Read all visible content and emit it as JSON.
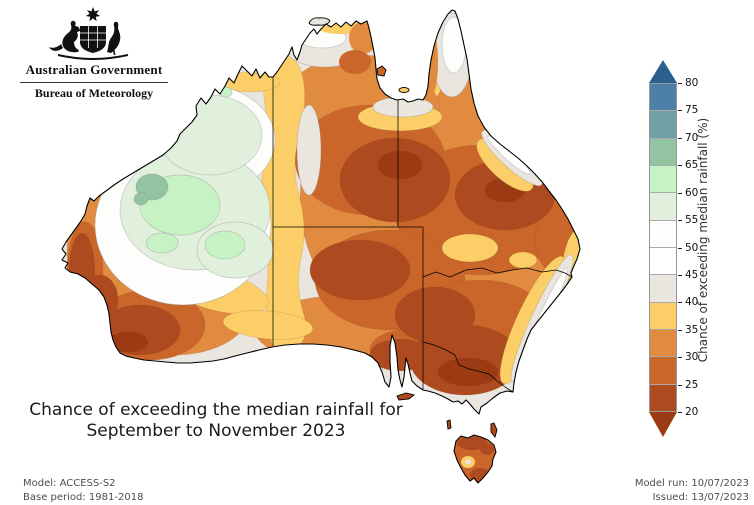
{
  "logo": {
    "government": "Australian Government",
    "bureau": "Bureau of Meteorology"
  },
  "caption": {
    "line1": "Chance of exceeding the median rainfall for",
    "line2": "September to November 2023"
  },
  "footnotes": {
    "model": "Model: ACCESS-S2",
    "base_period": "Base period: 1981-2018",
    "model_run": "Model run: 10/07/2023",
    "issued": "Issued: 13/07/2023"
  },
  "legend": {
    "title": "Chance of exceeding median rainfall (%)",
    "tick_labels": [
      "80",
      "75",
      "70",
      "65",
      "60",
      "55",
      "50",
      "45",
      "40",
      "35",
      "30",
      "25",
      "20"
    ],
    "segment_colors": [
      "#4C80A9",
      "#70A0A3",
      "#92C4A1",
      "#C6F2C4",
      "#E1EFDD",
      "#FDFDFC",
      "#FFFFFF",
      "#EAE5DF",
      "#FBCE67",
      "#E18B41",
      "#CB662A",
      "#AE4A20"
    ],
    "above_arrow_color": "#2B5F8E",
    "below_arrow_color": "#9C3A13"
  },
  "map": {
    "description": "Filled contour map of Australia, chance of exceeding median rainfall",
    "band_colors": {
      "b70_75": "#70A0A3",
      "b65_70": "#92C4A1",
      "b60_65": "#C6F2C4",
      "b55_60": "#E1EFDD",
      "b45_55": "#FDFDFC",
      "b40_45": "#EAE5DF",
      "b35_40": "#FBCE67",
      "b30_35": "#E18B41",
      "b25_30": "#CB662A",
      "b20_25": "#AE4A20",
      "b_lt20": "#9C3A13"
    }
  }
}
